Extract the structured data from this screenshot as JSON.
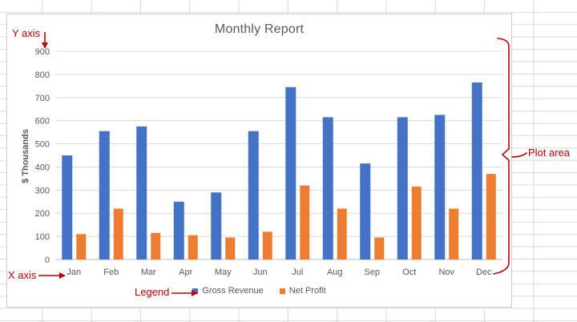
{
  "sheet": {
    "grid_color": "#D9D9D9"
  },
  "chart_data": {
    "type": "bar",
    "title": "Monthly Report",
    "categories": [
      "Jan",
      "Feb",
      "Mar",
      "Apr",
      "May",
      "Jun",
      "Jul",
      "Aug",
      "Sep",
      "Oct",
      "Nov",
      "Dec"
    ],
    "series": [
      {
        "name": "Gross Revenue",
        "color": "#4472C4",
        "values": [
          450,
          555,
          575,
          250,
          290,
          555,
          745,
          615,
          415,
          615,
          625,
          765
        ]
      },
      {
        "name": "Net Profit",
        "color": "#ED7D31",
        "values": [
          110,
          220,
          115,
          105,
          95,
          120,
          320,
          220,
          95,
          315,
          220,
          370
        ]
      }
    ],
    "xlabel": "",
    "ylabel": "$ Thousands",
    "ylim": [
      0,
      900
    ],
    "ytick_step": 100,
    "grid": true,
    "legend_position": "bottom",
    "axis_text_color": "#595959",
    "gridline_color": "#D9D9D9",
    "axis_line_color": "#BFBFBF"
  },
  "annotations": {
    "color": "#C00000",
    "y_axis_label": "Y axis",
    "x_axis_label": "X axis",
    "legend_label": "Legend",
    "plot_area_label": "Plot area"
  }
}
